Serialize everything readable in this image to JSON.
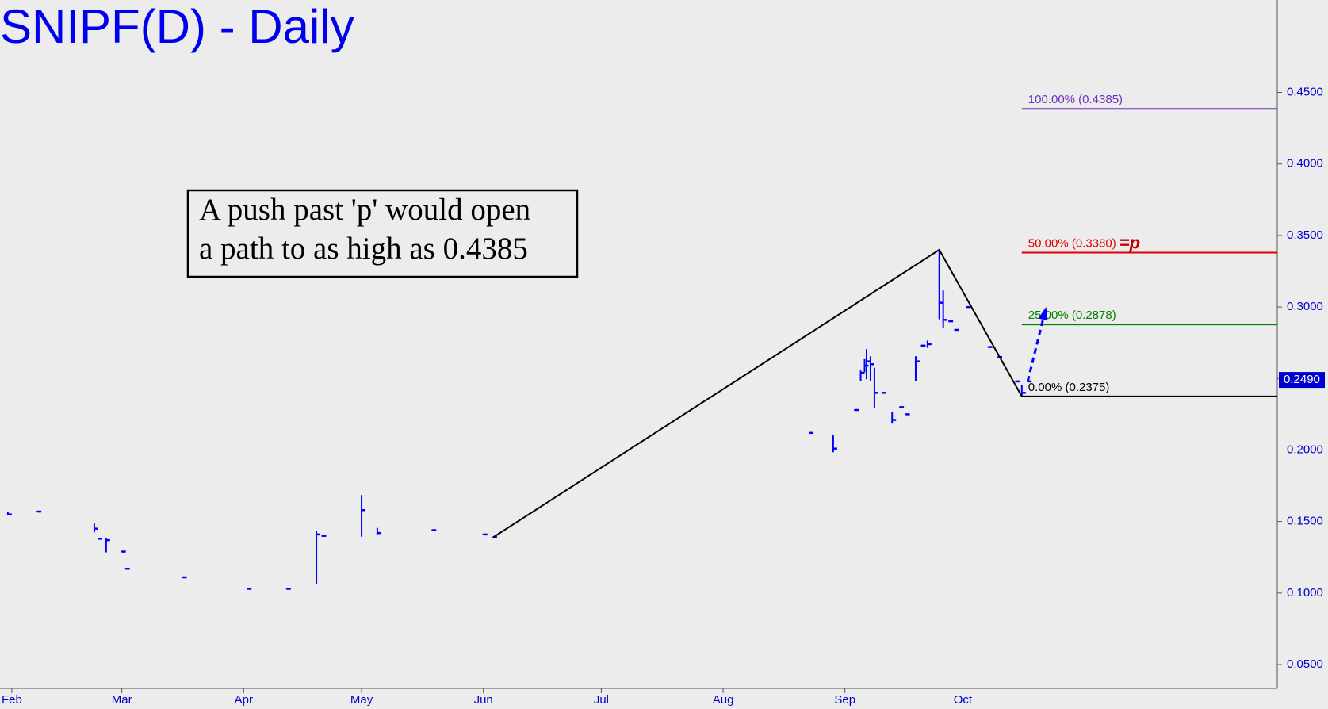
{
  "chart_data": {
    "type": "ohlc",
    "title": "SNIPF(D) - Daily",
    "annotation": [
      "A push past 'p' would open",
      "a path to as high as 0.4385"
    ],
    "xlim": [
      -3,
      322
    ],
    "xticks": [
      {
        "value": 0,
        "label": "Feb"
      },
      {
        "value": 28,
        "label": "Mar"
      },
      {
        "value": 59,
        "label": "Apr"
      },
      {
        "value": 89,
        "label": "May"
      },
      {
        "value": 120,
        "label": "Jun"
      },
      {
        "value": 150,
        "label": "Jul"
      },
      {
        "value": 181,
        "label": "Aug"
      },
      {
        "value": 212,
        "label": "Sep"
      },
      {
        "value": 242,
        "label": "Oct"
      }
    ],
    "ylim": [
      0.0334,
      0.5146
    ],
    "yticks": [
      {
        "value": 0.05,
        "label": "0.0500"
      },
      {
        "value": 0.1,
        "label": "0.1000"
      },
      {
        "value": 0.15,
        "label": "0.1500"
      },
      {
        "value": 0.2,
        "label": "0.2000"
      },
      {
        "value": 0.25,
        "label": "0.2500"
      },
      {
        "value": 0.3,
        "label": "0.3000"
      },
      {
        "value": 0.35,
        "label": "0.3500"
      },
      {
        "value": 0.4,
        "label": "0.4000"
      },
      {
        "value": 0.45,
        "label": "0.4500"
      }
    ],
    "color": "#0000ff",
    "x": [
      -1,
      6.5,
      21,
      22,
      24,
      28,
      29,
      43.5,
      60,
      70,
      77.5,
      79,
      89,
      93,
      107,
      120,
      122.5,
      203,
      209,
      214.5,
      216,
      217,
      217.5,
      218.5,
      219.5,
      221.5,
      224,
      226,
      227.5,
      230,
      231.5,
      233,
      236,
      237,
      238.5,
      240,
      243,
      248.5,
      251,
      255.5,
      257,
      258.5
    ],
    "high": [
      0.156,
      0.157,
      0.148,
      0.138,
      0.138,
      0.129,
      0.117,
      0.111,
      0.103,
      0.103,
      0.143,
      0.14,
      0.168,
      0.145,
      0.144,
      0.141,
      0.139,
      0.212,
      0.21,
      0.228,
      0.255,
      0.263,
      0.27,
      0.265,
      0.257,
      0.24,
      0.226,
      0.23,
      0.225,
      0.265,
      0.273,
      0.276,
      0.34,
      0.311,
      0.29,
      0.284,
      0.3,
      0.272,
      0.265,
      0.248,
      0.245,
      0.248
    ],
    "low": [
      0.155,
      0.157,
      0.143,
      0.138,
      0.129,
      0.129,
      0.117,
      0.111,
      0.103,
      0.103,
      0.107,
      0.14,
      0.14,
      0.141,
      0.144,
      0.141,
      0.139,
      0.212,
      0.199,
      0.228,
      0.249,
      0.255,
      0.25,
      0.249,
      0.23,
      0.24,
      0.219,
      0.23,
      0.225,
      0.249,
      0.273,
      0.272,
      0.292,
      0.286,
      0.29,
      0.284,
      0.3,
      0.272,
      0.265,
      0.248,
      0.238,
      0.248
    ],
    "close": [
      0.155,
      0.157,
      0.145,
      0.138,
      0.137,
      0.129,
      0.117,
      0.111,
      0.103,
      0.103,
      0.141,
      0.14,
      0.158,
      0.142,
      0.144,
      0.141,
      0.139,
      0.212,
      0.201,
      0.228,
      0.254,
      0.259,
      0.262,
      0.26,
      0.24,
      0.24,
      0.221,
      0.23,
      0.225,
      0.262,
      0.273,
      0.274,
      0.303,
      0.291,
      0.29,
      0.284,
      0.3,
      0.272,
      0.265,
      0.248,
      0.24,
      0.248
    ],
    "swing": {
      "x": [
        122.5,
        236,
        257
      ],
      "values": [
        0.139,
        0.34,
        0.2375
      ]
    },
    "projection": {
      "x": [
        258.5,
        263
      ],
      "values": [
        0.248,
        0.298
      ],
      "color": "#0000ff"
    },
    "levels": [
      {
        "label": "100.00% (0.4385)",
        "value": 0.4385,
        "color": "#7030c0"
      },
      {
        "label": "50.00% (0.3380)",
        "value": 0.338,
        "color": "#e00000",
        "tag": "=p"
      },
      {
        "label": "25.00% (0.2878)",
        "value": 0.2878,
        "color": "#008000"
      },
      {
        "label": "0.00% (0.2375)",
        "value": 0.2375,
        "color": "#000000"
      }
    ],
    "last_price": {
      "value": 0.249,
      "label": "0.2490"
    }
  }
}
